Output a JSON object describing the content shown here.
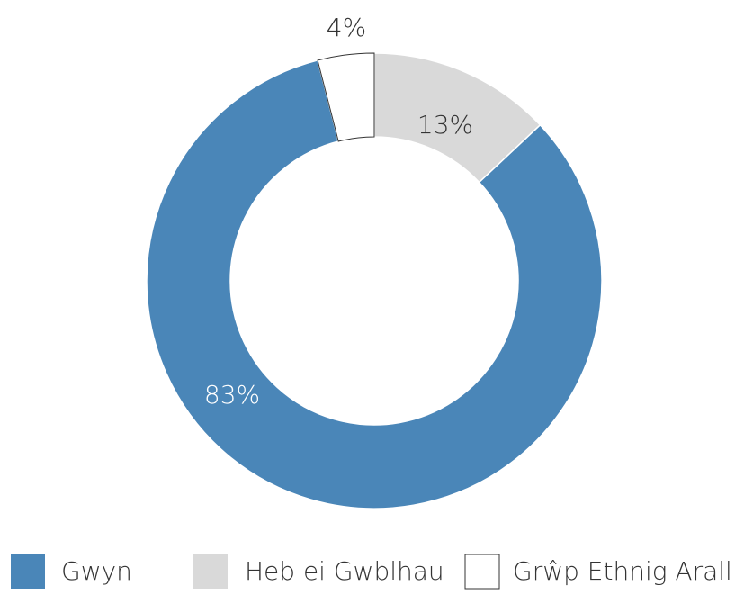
{
  "chart_data": {
    "type": "donut",
    "categories": [
      "Gwyn",
      "Heb ei Gwblhau",
      "Grŵp Ethnig Arall"
    ],
    "values": [
      83,
      13,
      4
    ],
    "value_labels": [
      "83%",
      "13%",
      "4%"
    ],
    "colors": [
      "#4a86b8",
      "#d9d9d9",
      "#ffffff"
    ],
    "legend": "bottom"
  }
}
